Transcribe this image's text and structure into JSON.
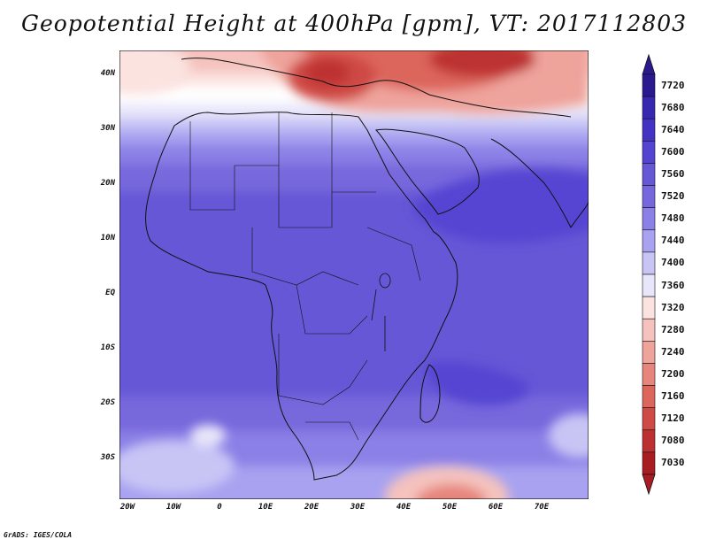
{
  "title": "Geopotential Height at 400hPa [gpm], VT: 2017112803",
  "footer": "GrADS: IGES/COLA",
  "chart_data": {
    "type": "heatmap",
    "variable": "Geopotential Height at 400hPa",
    "units": "gpm",
    "valid_time": "2017112803",
    "lat_range": [
      -37,
      45
    ],
    "lon_range": [
      -22,
      80
    ],
    "y_ticks": [
      "40N",
      "30N",
      "20N",
      "10N",
      "EQ",
      "10S",
      "20S",
      "30S"
    ],
    "x_ticks": [
      "20W",
      "10W",
      "0",
      "10E",
      "20E",
      "30E",
      "40E",
      "50E",
      "60E",
      "70E"
    ],
    "colorbar": {
      "levels": [
        "7720",
        "7680",
        "7640",
        "7600",
        "7560",
        "7520",
        "7480",
        "7440",
        "7400",
        "7360",
        "7320",
        "7280",
        "7240",
        "7200",
        "7160",
        "7120",
        "7080",
        "7030"
      ],
      "colors": [
        "#2a198f",
        "#3628b0",
        "#4432c5",
        "#5444d2",
        "#6557d6",
        "#7767dc",
        "#8b80e6",
        "#a8a2f0",
        "#c8c5f5",
        "#e8e6fa",
        "#fbe3e0",
        "#f5c2bd",
        "#eea39b",
        "#e6857b",
        "#dc655c",
        "#cf4a44",
        "#bd3030",
        "#a81d22"
      ]
    }
  }
}
